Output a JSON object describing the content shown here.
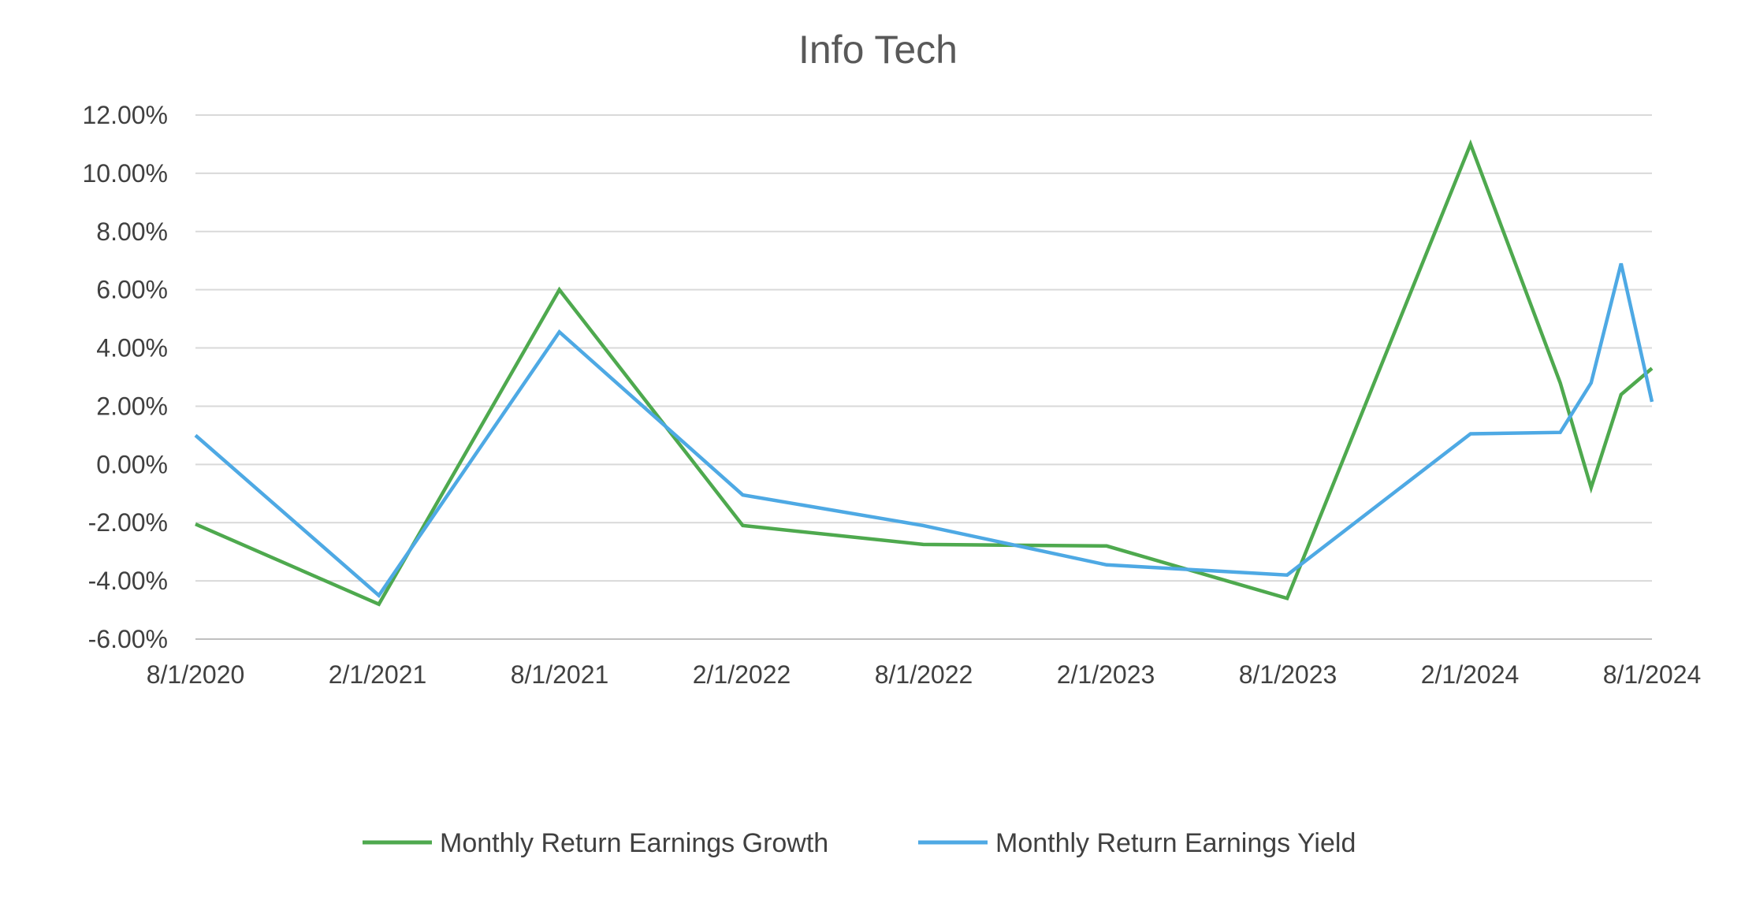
{
  "chart_data": {
    "type": "line",
    "title": "Info Tech",
    "xlabel": "",
    "ylabel": "",
    "x_ticks": [
      "8/1/2020",
      "2/1/2021",
      "8/1/2021",
      "2/1/2022",
      "8/1/2022",
      "2/1/2023",
      "8/1/2023",
      "2/1/2024",
      "8/1/2024"
    ],
    "y_ticks": [
      "12.00%",
      "10.00%",
      "8.00%",
      "6.00%",
      "4.00%",
      "2.00%",
      "0.00%",
      "-2.00%",
      "-4.00%",
      "-6.00%"
    ],
    "xlim": [
      "2020-08-01",
      "2024-08-01"
    ],
    "ylim": [
      -6,
      12
    ],
    "y_unit": "%",
    "grid": true,
    "legend_position": "bottom",
    "series": [
      {
        "name": "Monthly Return Earnings Growth",
        "color": "#4ea94e",
        "points": [
          {
            "x": "2020-08-01",
            "y": -2.05
          },
          {
            "x": "2021-02-01",
            "y": -4.8
          },
          {
            "x": "2021-08-01",
            "y": 6.0
          },
          {
            "x": "2022-02-01",
            "y": -2.1
          },
          {
            "x": "2022-08-01",
            "y": -2.75
          },
          {
            "x": "2023-02-01",
            "y": -2.8
          },
          {
            "x": "2023-08-01",
            "y": -4.6
          },
          {
            "x": "2024-02-01",
            "y": 11.0
          },
          {
            "x": "2024-05-01",
            "y": 2.8
          },
          {
            "x": "2024-06-01",
            "y": -0.8
          },
          {
            "x": "2024-07-01",
            "y": 2.4
          },
          {
            "x": "2024-08-01",
            "y": 3.3
          }
        ]
      },
      {
        "name": "Monthly Return Earnings Yield",
        "color": "#4ea9e4",
        "points": [
          {
            "x": "2020-08-01",
            "y": 1.0
          },
          {
            "x": "2021-02-01",
            "y": -4.5
          },
          {
            "x": "2021-08-01",
            "y": 4.55
          },
          {
            "x": "2022-02-01",
            "y": -1.05
          },
          {
            "x": "2022-08-01",
            "y": -2.1
          },
          {
            "x": "2023-02-01",
            "y": -3.45
          },
          {
            "x": "2023-08-01",
            "y": -3.8
          },
          {
            "x": "2024-02-01",
            "y": 1.05
          },
          {
            "x": "2024-05-01",
            "y": 1.1
          },
          {
            "x": "2024-06-01",
            "y": 2.8
          },
          {
            "x": "2024-07-01",
            "y": 6.9
          },
          {
            "x": "2024-08-01",
            "y": 2.15
          }
        ]
      }
    ]
  }
}
